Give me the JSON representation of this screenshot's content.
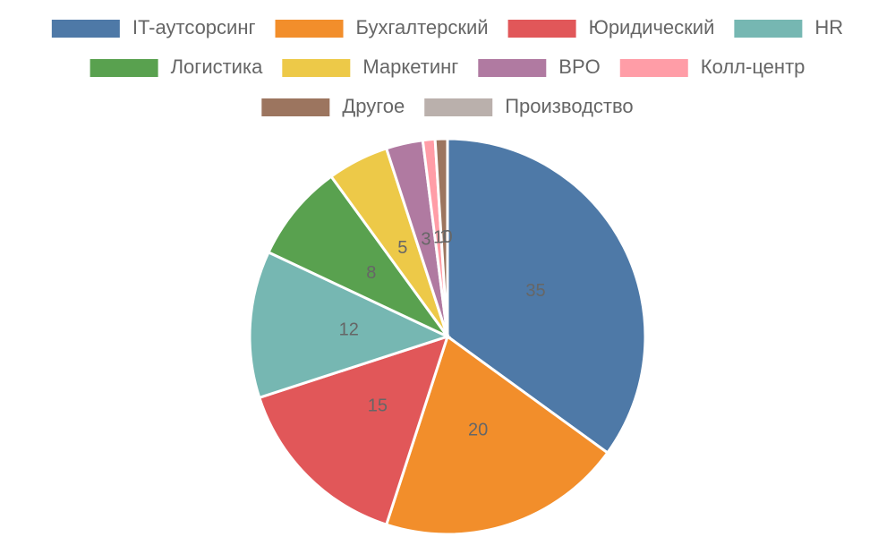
{
  "chart_data": {
    "type": "pie",
    "categories": [
      "IT-аутсорсинг",
      "Бухгалтерский",
      "Юридический",
      "HR",
      "Логистика",
      "Маркетинг",
      "BPO",
      "Колл-центр",
      "Другое",
      "Производство"
    ],
    "values": [
      35,
      20,
      15,
      12,
      8,
      5,
      3,
      1,
      1,
      0
    ],
    "colors": [
      "#4e79a7",
      "#f28e2b",
      "#e15759",
      "#76b7b2",
      "#59a14f",
      "#edc948",
      "#b07aa1",
      "#ff9da7",
      "#9c755f",
      "#bab0ac"
    ],
    "legend": "top"
  }
}
